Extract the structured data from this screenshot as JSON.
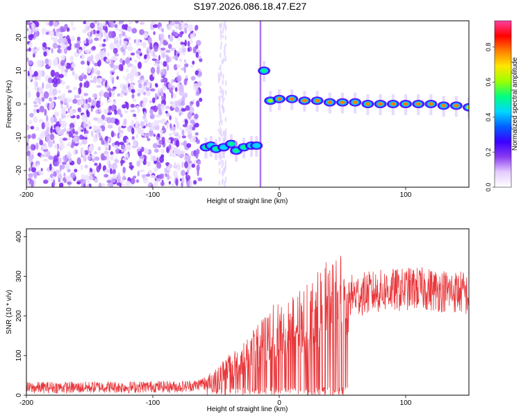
{
  "title": "S197.2026.086.18.47.E27",
  "colorbar": {
    "label": "Normalized spectral amplitude",
    "ticks": [
      "0.0",
      "0.2",
      "0.4",
      "0.6",
      "0.8"
    ],
    "tick_values": [
      0.0,
      0.2,
      0.4,
      0.6,
      0.8
    ],
    "range": [
      0,
      0.95
    ],
    "colors": [
      "#ffffff",
      "#e6ccff",
      "#8a3cf0",
      "#3b00ff",
      "#0060ff",
      "#00d8ff",
      "#00ff80",
      "#9cff00",
      "#ffe600",
      "#ff8000",
      "#ff0000",
      "#ff40a0"
    ]
  },
  "chart_data": [
    {
      "type": "heatmap",
      "xlabel": "Height of straight line (km)",
      "ylabel": "Frequency (Hz)",
      "xlim": [
        -200,
        150
      ],
      "ylim": [
        -25,
        25
      ],
      "xticks": [
        -200,
        -100,
        0,
        100
      ],
      "yticks": [
        -20,
        -10,
        0,
        10,
        20
      ],
      "background": "low-amplitude purple speckle noise for x < -60 km, blank between -60 and -15 km",
      "ridge": [
        {
          "x": -58,
          "y": -13,
          "amp": 0.5
        },
        {
          "x": -54,
          "y": -12.5,
          "amp": 0.45
        },
        {
          "x": -50,
          "y": -13.5,
          "amp": 0.5
        },
        {
          "x": -44,
          "y": -13,
          "amp": 0.45
        },
        {
          "x": -38,
          "y": -12,
          "amp": 0.55
        },
        {
          "x": -34,
          "y": -14,
          "amp": 0.5
        },
        {
          "x": -28,
          "y": -13,
          "amp": 0.55
        },
        {
          "x": -22,
          "y": -12.5,
          "amp": 0.45
        },
        {
          "x": -18,
          "y": -12.5,
          "amp": 0.45
        },
        {
          "x": -12,
          "y": 10,
          "amp": 0.5
        },
        {
          "x": -7,
          "y": 1,
          "amp": 0.6
        },
        {
          "x": 0,
          "y": 1.5,
          "amp": 0.75
        },
        {
          "x": 10,
          "y": 1.5,
          "amp": 0.8
        },
        {
          "x": 20,
          "y": 1,
          "amp": 0.75
        },
        {
          "x": 30,
          "y": 1,
          "amp": 0.8
        },
        {
          "x": 40,
          "y": 0.5,
          "amp": 0.8
        },
        {
          "x": 50,
          "y": 0.5,
          "amp": 0.75
        },
        {
          "x": 60,
          "y": 0.5,
          "amp": 0.8
        },
        {
          "x": 70,
          "y": 0,
          "amp": 0.8
        },
        {
          "x": 80,
          "y": 0,
          "amp": 0.8
        },
        {
          "x": 90,
          "y": 0,
          "amp": 0.8
        },
        {
          "x": 100,
          "y": 0,
          "amp": 0.8
        },
        {
          "x": 110,
          "y": 0,
          "amp": 0.8
        },
        {
          "x": 120,
          "y": 0,
          "amp": 0.8
        },
        {
          "x": 130,
          "y": -0.5,
          "amp": 0.8
        },
        {
          "x": 140,
          "y": -0.5,
          "amp": 0.75
        },
        {
          "x": 150,
          "y": -1,
          "amp": 0.7
        }
      ]
    },
    {
      "type": "line",
      "xlabel": "Height of straight line (km)",
      "ylabel": "SNR (10 * v/v)",
      "xlim": [
        -200,
        150
      ],
      "ylim": [
        0,
        420
      ],
      "xticks": [
        -200,
        -100,
        0,
        100
      ],
      "yticks": [
        0,
        100,
        200,
        300,
        400
      ],
      "color": "#e8383c",
      "series": [
        {
          "x": [
            -200,
            -180,
            -160,
            -140,
            -120,
            -100,
            -80,
            -65,
            -55,
            -45,
            -35,
            -25,
            -15,
            -5,
            5,
            15,
            25,
            35,
            45,
            55,
            65,
            75,
            85,
            95,
            105,
            115,
            125,
            135,
            145,
            150
          ],
          "y": [
            18,
            20,
            19,
            21,
            20,
            22,
            21,
            25,
            40,
            60,
            80,
            100,
            130,
            160,
            170,
            180,
            200,
            230,
            240,
            250,
            255,
            260,
            265,
            265,
            270,
            268,
            265,
            262,
            260,
            250
          ]
        }
      ]
    }
  ]
}
